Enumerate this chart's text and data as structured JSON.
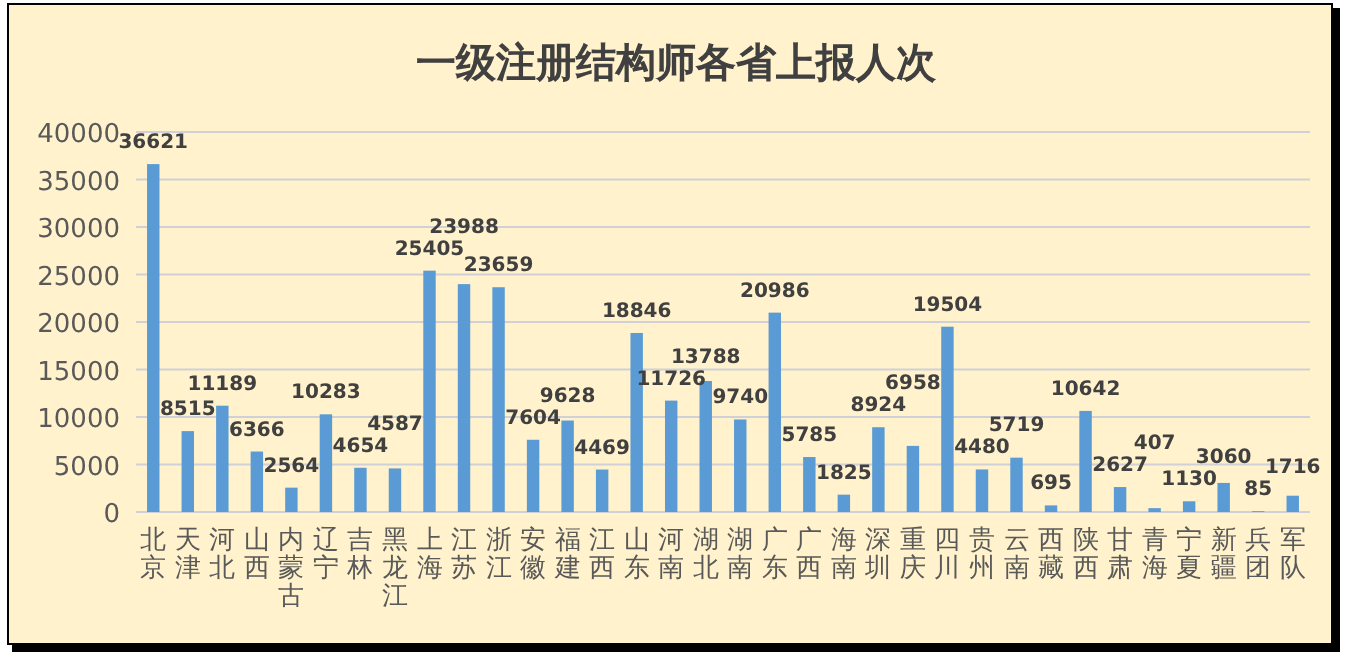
{
  "chart_data": {
    "type": "bar",
    "title": "一级注册结构师各省上报人次",
    "categories": [
      "北京",
      "天津",
      "河北",
      "山西",
      "内蒙古",
      "辽宁",
      "吉林",
      "黑龙江",
      "上海",
      "江苏",
      "浙江",
      "安徽",
      "福建",
      "江西",
      "山东",
      "河南",
      "湖北",
      "湖南",
      "广东",
      "广西",
      "海南",
      "深圳",
      "重庆",
      "四川",
      "贵州",
      "云南",
      "西藏",
      "陕西",
      "甘肃",
      "青海",
      "宁夏",
      "新疆",
      "兵团",
      "军队"
    ],
    "values": [
      36621,
      8515,
      11189,
      6366,
      2564,
      10283,
      4654,
      4587,
      25405,
      23988,
      23659,
      7604,
      9628,
      4469,
      18846,
      11726,
      13788,
      9740,
      20986,
      5785,
      1825,
      8924,
      6958,
      19504,
      4480,
      5719,
      695,
      10642,
      2627,
      407,
      1130,
      3060,
      85,
      1716
    ],
    "color": "#5b9bd5",
    "ylim": [
      0,
      40000
    ],
    "yticks": [
      0,
      5000,
      10000,
      15000,
      20000,
      25000,
      30000,
      35000,
      40000
    ],
    "grid": "y",
    "data_labels": true
  }
}
